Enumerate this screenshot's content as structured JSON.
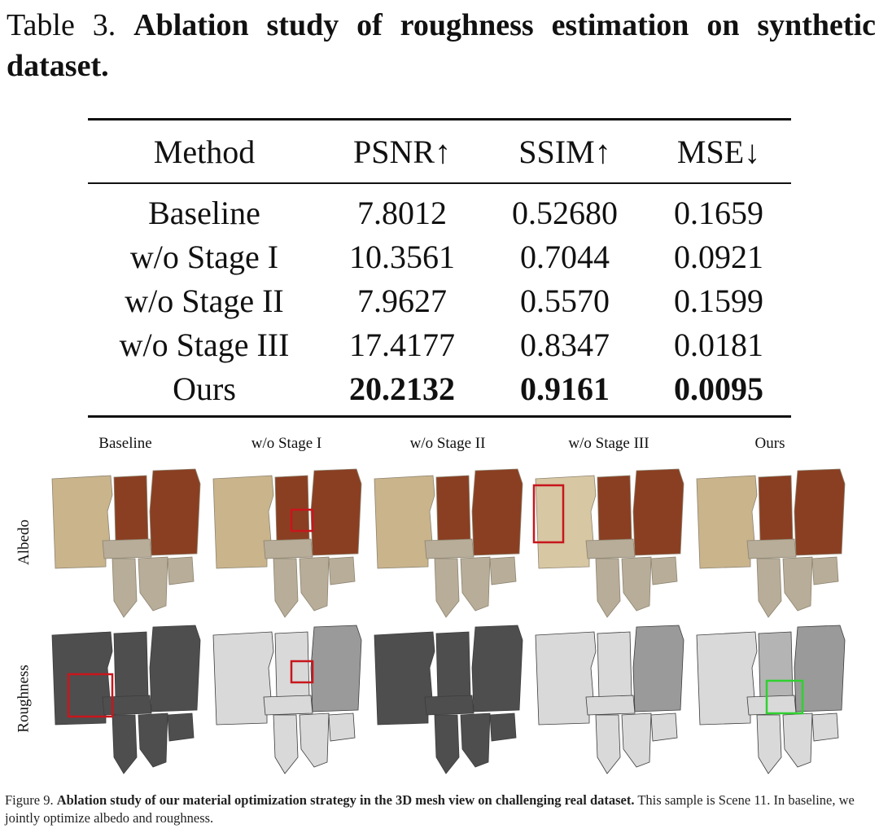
{
  "table_caption": {
    "prefix": "Table 3.",
    "title": "Ablation study of roughness estimation on synthetic dataset."
  },
  "table": {
    "headers": [
      "Method",
      "PSNR↑",
      "SSIM↑",
      "MSE↓"
    ],
    "rows": [
      {
        "cells": [
          "Baseline",
          "7.8012",
          "0.52680",
          "0.1659"
        ],
        "bold": [
          false,
          false,
          false,
          false
        ]
      },
      {
        "cells": [
          "w/o Stage I",
          "10.3561",
          "0.7044",
          "0.0921"
        ],
        "bold": [
          false,
          false,
          false,
          false
        ]
      },
      {
        "cells": [
          "w/o Stage II",
          "7.9627",
          "0.5570",
          "0.1599"
        ],
        "bold": [
          false,
          false,
          false,
          false
        ]
      },
      {
        "cells": [
          "w/o Stage III",
          "17.4177",
          "0.8347",
          "0.0181"
        ],
        "bold": [
          false,
          false,
          false,
          false
        ]
      },
      {
        "cells": [
          "Ours",
          "20.2132",
          "0.9161",
          "0.0095"
        ],
        "bold": [
          false,
          true,
          true,
          true
        ]
      }
    ]
  },
  "figure": {
    "columns": [
      "Baseline",
      "w/o Stage I",
      "w/o Stage II",
      "w/o Stage III",
      "Ours"
    ],
    "rows": [
      "Albedo",
      "Roughness"
    ],
    "colors": {
      "albedo_floor": "#c9b48c",
      "albedo_floor_bright": "#d7c7a3",
      "albedo_red": "#8a3f22",
      "albedo_wall": "#b7ad98",
      "rough_dark": "#4e4e4e",
      "rough_light": "#d9d9d9",
      "rough_mid": "#9a9a9a",
      "highlight_red": "#c8161c",
      "highlight_green": "#2fd12f"
    }
  },
  "figure_caption": {
    "label": "Figure 9.",
    "bold": "Ablation study of our material optimization strategy in the 3D mesh view on challenging real dataset.",
    "rest": "This sample is Scene 11. In baseline, we jointly optimize albedo and roughness."
  }
}
